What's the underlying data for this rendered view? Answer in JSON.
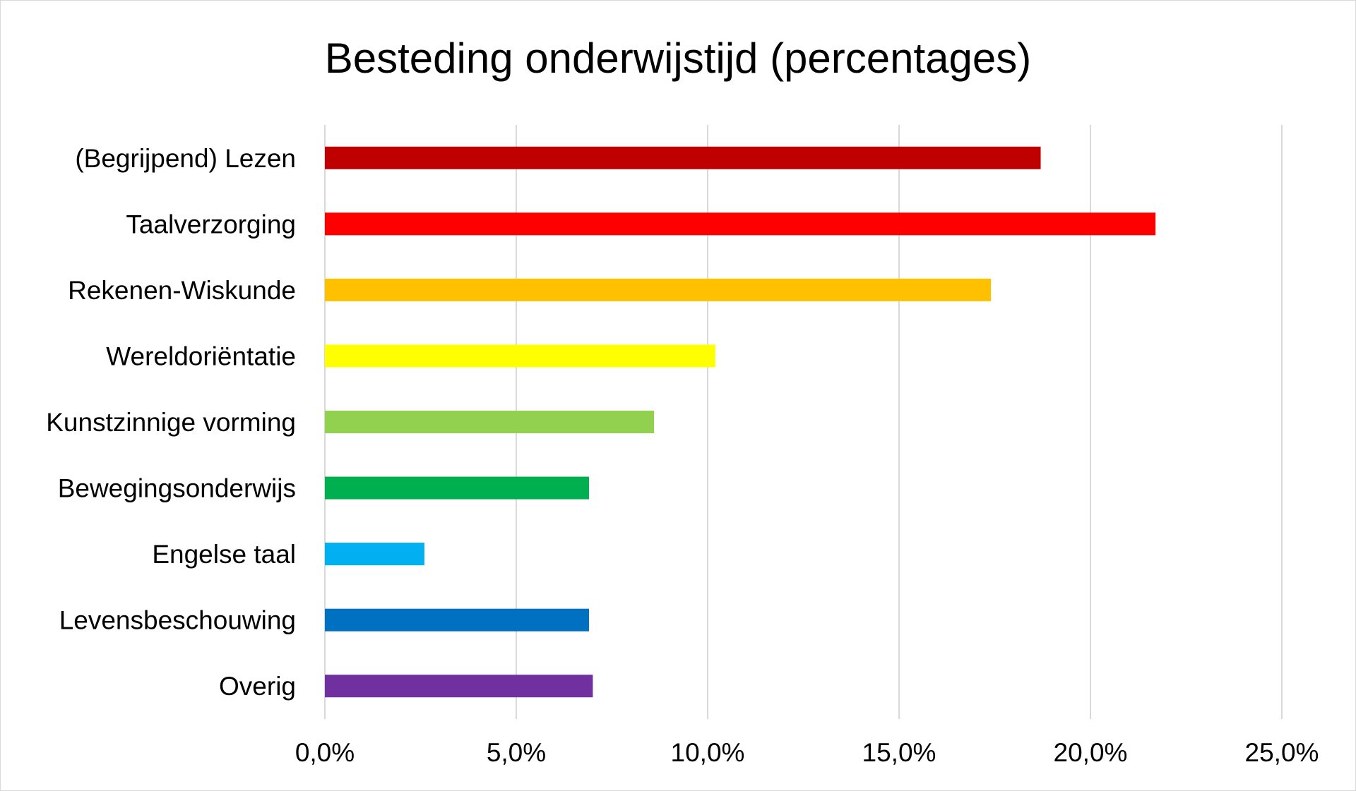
{
  "chart_data": {
    "type": "bar",
    "orientation": "horizontal",
    "title": "Besteding onderwijstijd (percentages)",
    "xlabel": "",
    "ylabel": "",
    "xlim": [
      0,
      25
    ],
    "ticks": [
      "0,0%",
      "5,0%",
      "10,0%",
      "15,0%",
      "20,0%",
      "25,0%"
    ],
    "tick_values": [
      0,
      5,
      10,
      15,
      20,
      25
    ],
    "grid": "vertical",
    "legend": "none",
    "categories": [
      "(Begrijpend) Lezen",
      "Taalverzorging",
      "Rekenen-Wiskunde",
      "Wereldoriëntatie",
      "Kunstzinnige vorming",
      "Bewegingsonderwijs",
      "Engelse taal",
      "Levensbeschouwing",
      "Overig"
    ],
    "values": [
      18.7,
      21.7,
      17.4,
      10.2,
      8.6,
      6.9,
      2.6,
      6.9,
      7.0
    ],
    "colors": [
      "#c00000",
      "#ff0000",
      "#ffc000",
      "#ffff00",
      "#92d050",
      "#00b050",
      "#00b0f0",
      "#0070c0",
      "#7030a0"
    ]
  }
}
